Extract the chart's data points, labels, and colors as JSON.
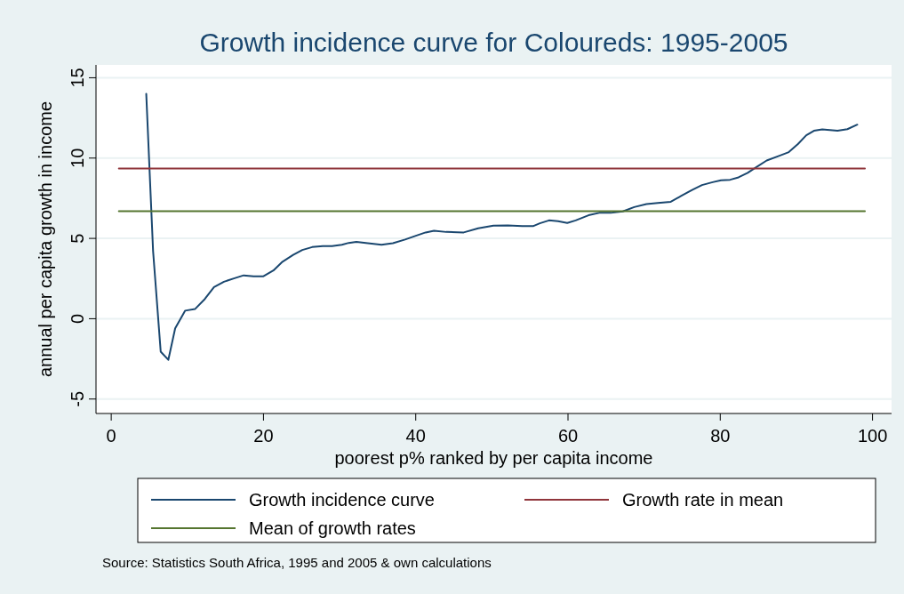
{
  "chart_data": {
    "type": "line",
    "title": "Growth incidence curve for Coloureds: 1995-2005",
    "xlabel": "poorest p% ranked by per capita income",
    "ylabel": "annual per capita growth in income",
    "xlim": [
      -2,
      102.5
    ],
    "ylim": [
      -5.9,
      15.8
    ],
    "xticks": [
      0,
      20,
      40,
      60,
      80,
      100
    ],
    "yticks": [
      -5,
      0,
      5,
      10,
      15
    ],
    "grid": "y",
    "legend": "bottom",
    "line_style": "solid",
    "marker": "none",
    "series": [
      {
        "name": "Growth incidence curve",
        "color": "#1a476f",
        "x": [
          4.6,
          5.5,
          6.5,
          7.5,
          8.4,
          9.7,
          11,
          12.3,
          13.5,
          14.8,
          16.2,
          17.4,
          18.7,
          20,
          21.3,
          22.5,
          23.9,
          25.1,
          26.4,
          27.8,
          29,
          30.3,
          31.2,
          32.2,
          33.7,
          35.5,
          37,
          38.6,
          40.1,
          41.3,
          42.4,
          44,
          46.3,
          48.2,
          50.2,
          52.1,
          54,
          55.4,
          56.3,
          57.5,
          58.7,
          59.9,
          61,
          62.7,
          64.1,
          65.6,
          67.2,
          68.7,
          70.3,
          71.8,
          73.5,
          74.9,
          76.3,
          77.6,
          79,
          80.1,
          81.3,
          82.4,
          83.6,
          84.8,
          86.1,
          87.7,
          89,
          90.2,
          91.3,
          92.3,
          93.4,
          95.4,
          96.7,
          98
        ],
        "values": [
          14.0,
          4.2,
          -2.05,
          -2.56,
          -0.6,
          0.5,
          0.6,
          1.23,
          1.97,
          2.3,
          2.52,
          2.7,
          2.64,
          2.64,
          3.0,
          3.55,
          3.97,
          4.28,
          4.46,
          4.52,
          4.52,
          4.6,
          4.72,
          4.78,
          4.7,
          4.6,
          4.7,
          4.93,
          5.18,
          5.37,
          5.48,
          5.4,
          5.37,
          5.63,
          5.79,
          5.81,
          5.76,
          5.76,
          5.94,
          6.12,
          6.07,
          5.96,
          6.12,
          6.44,
          6.59,
          6.59,
          6.68,
          6.95,
          7.14,
          7.2,
          7.28,
          7.65,
          8.02,
          8.32,
          8.5,
          8.62,
          8.65,
          8.8,
          9.08,
          9.45,
          9.85,
          10.13,
          10.37,
          10.87,
          11.42,
          11.7,
          11.79,
          11.7,
          11.8,
          12.08
        ]
      },
      {
        "name": "Growth rate in mean",
        "color": "#90353b",
        "x": [
          1,
          99
        ],
        "values": [
          9.35,
          9.35
        ]
      },
      {
        "name": "Mean of growth rates",
        "color": "#55752f",
        "x": [
          1,
          99
        ],
        "values": [
          6.7,
          6.7
        ]
      }
    ],
    "annotations": [
      "Source: Statistics South Africa, 1995 and 2005 & own calculations"
    ]
  }
}
